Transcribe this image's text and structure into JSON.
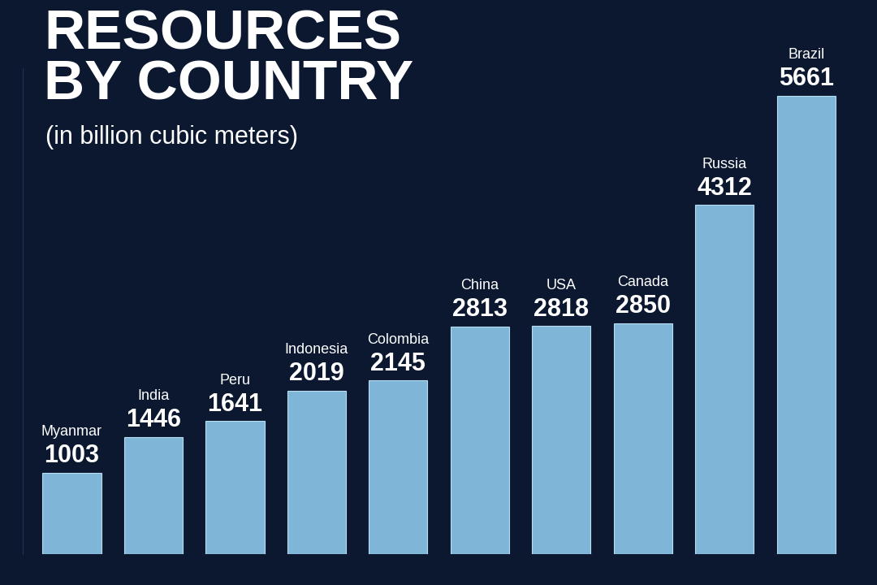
{
  "chart_data": {
    "type": "bar",
    "title": "RESOURCES\nBY COUNTRY",
    "subtitle": "(in billion cubic meters)",
    "categories": [
      "Myanmar",
      "India",
      "Peru",
      "Indonesia",
      "Colombia",
      "China",
      "USA",
      "Canada",
      "Russia",
      "Brazil"
    ],
    "values": [
      1003,
      1446,
      1641,
      2019,
      2145,
      2813,
      2818,
      2850,
      4312,
      5661
    ],
    "color": "#7fb6d8",
    "ylim": [
      0,
      6000
    ],
    "data_labels": true,
    "tick_labels": false,
    "grid": false
  }
}
